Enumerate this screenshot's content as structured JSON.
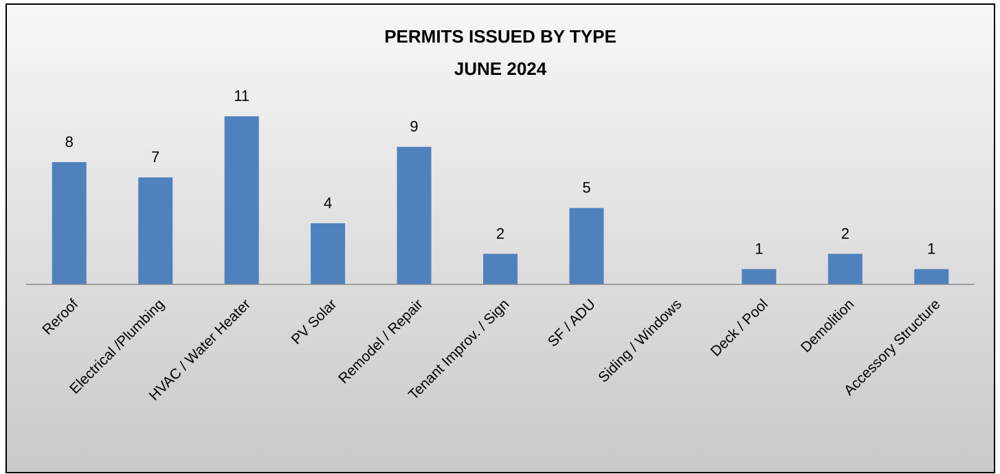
{
  "chart_data": {
    "type": "bar",
    "title": "PERMITS ISSUED BY TYPE",
    "subtitle": "JUNE 2024",
    "categories": [
      "Reroof",
      "Electrical /Plumbing",
      "HVAC / Water Heater",
      "PV Solar",
      "Remodel / Repair",
      "Tenant Improv. / Sign",
      "SF / ADU",
      "Siding / Windows",
      "Deck / Pool",
      "Demolition",
      "Accessory Structure"
    ],
    "values": [
      8,
      7,
      11,
      4,
      9,
      2,
      5,
      null,
      1,
      2,
      1
    ],
    "color": "#4f81bd",
    "ylim": [
      0,
      12
    ],
    "data_labels": true
  }
}
